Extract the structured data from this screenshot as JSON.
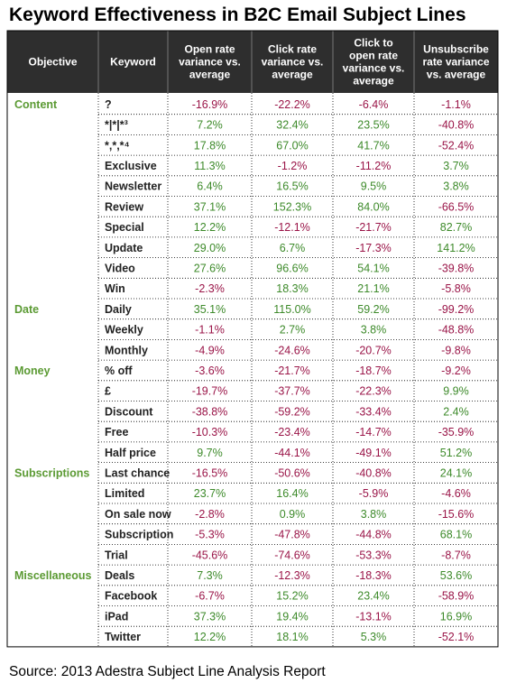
{
  "title": "Keyword Effectiveness in B2C Email Subject Lines",
  "source": "Source: 2013 Adestra Subject Line Analysis Report",
  "colors": {
    "header_bg": "#2e2e2e",
    "category_text": "#5b9a33",
    "positive_text": "#3d8a2a",
    "negative_text": "#9a1548",
    "grid": "#000000"
  },
  "chart_data": {
    "type": "table",
    "columns": [
      "Objective",
      "Keyword",
      "Open rate variance vs. average",
      "Click rate variance vs. average",
      "Click to open rate variance vs. average",
      "Unsubscribe rate variance vs. average"
    ],
    "column_header_lines": [
      [
        "Objective"
      ],
      [
        "Keyword"
      ],
      [
        "Open rate",
        "variance vs.",
        "average"
      ],
      [
        "Click rate",
        "variance vs.",
        "average"
      ],
      [
        "Click to",
        "open rate",
        "variance vs.",
        "average"
      ],
      [
        "Unsubscribe",
        "rate variance",
        "vs. average"
      ]
    ],
    "rows": [
      {
        "category": "Content",
        "keyword": "?",
        "values": [
          "-16.9%",
          "-22.2%",
          "-6.4%",
          "-1.1%"
        ]
      },
      {
        "category": "",
        "keyword": "*|*|*³",
        "values": [
          "7.2%",
          "32.4%",
          "23.5%",
          "-40.8%"
        ]
      },
      {
        "category": "",
        "keyword": "*,*,*⁴",
        "values": [
          "17.8%",
          "67.0%",
          "41.7%",
          "-52.4%"
        ]
      },
      {
        "category": "",
        "keyword": "Exclusive",
        "values": [
          "11.3%",
          "-1.2%",
          "-11.2%",
          "3.7%"
        ]
      },
      {
        "category": "",
        "keyword": "Newsletter",
        "values": [
          "6.4%",
          "16.5%",
          "9.5%",
          "3.8%"
        ]
      },
      {
        "category": "",
        "keyword": "Review",
        "values": [
          "37.1%",
          "152.3%",
          "84.0%",
          "-66.5%"
        ]
      },
      {
        "category": "",
        "keyword": "Special",
        "values": [
          "12.2%",
          "-12.1%",
          "-21.7%",
          "82.7%"
        ]
      },
      {
        "category": "",
        "keyword": "Update",
        "values": [
          "29.0%",
          "6.7%",
          "-17.3%",
          "141.2%"
        ]
      },
      {
        "category": "",
        "keyword": "Video",
        "values": [
          "27.6%",
          "96.6%",
          "54.1%",
          "-39.8%"
        ]
      },
      {
        "category": "",
        "keyword": "Win",
        "values": [
          "-2.3%",
          "18.3%",
          "21.1%",
          "-5.8%"
        ]
      },
      {
        "category": "Date",
        "keyword": "Daily",
        "values": [
          "35.1%",
          "115.0%",
          "59.2%",
          "-99.2%"
        ]
      },
      {
        "category": "",
        "keyword": "Weekly",
        "values": [
          "-1.1%",
          "2.7%",
          "3.8%",
          "-48.8%"
        ]
      },
      {
        "category": "",
        "keyword": "Monthly",
        "values": [
          "-4.9%",
          "-24.6%",
          "-20.7%",
          "-9.8%"
        ]
      },
      {
        "category": "Money",
        "keyword": "% off",
        "values": [
          "-3.6%",
          "-21.7%",
          "-18.7%",
          "-9.2%"
        ]
      },
      {
        "category": "",
        "keyword": "£",
        "values": [
          "-19.7%",
          "-37.7%",
          "-22.3%",
          "9.9%"
        ]
      },
      {
        "category": "",
        "keyword": "Discount",
        "values": [
          "-38.8%",
          "-59.2%",
          "-33.4%",
          "2.4%"
        ]
      },
      {
        "category": "",
        "keyword": "Free",
        "values": [
          "-10.3%",
          "-23.4%",
          "-14.7%",
          "-35.9%"
        ]
      },
      {
        "category": "",
        "keyword": "Half price",
        "values": [
          "9.7%",
          "-44.1%",
          "-49.1%",
          "51.2%"
        ]
      },
      {
        "category": "Subscriptions",
        "keyword": "Last chance",
        "values": [
          "-16.5%",
          "-50.6%",
          "-40.8%",
          "24.1%"
        ]
      },
      {
        "category": "",
        "keyword": "Limited",
        "values": [
          "23.7%",
          "16.4%",
          "-5.9%",
          "-4.6%"
        ]
      },
      {
        "category": "",
        "keyword": "On sale now",
        "values": [
          "-2.8%",
          "0.9%",
          "3.8%",
          "-15.6%"
        ]
      },
      {
        "category": "",
        "keyword": "Subscription",
        "values": [
          "-5.3%",
          "-47.8%",
          "-44.8%",
          "68.1%"
        ]
      },
      {
        "category": "",
        "keyword": "Trial",
        "values": [
          "-45.6%",
          "-74.6%",
          "-53.3%",
          "-8.7%"
        ]
      },
      {
        "category": "Miscellaneous",
        "keyword": "Deals",
        "values": [
          "7.3%",
          "-12.3%",
          "-18.3%",
          "53.6%"
        ]
      },
      {
        "category": "",
        "keyword": "Facebook",
        "values": [
          "-6.7%",
          "15.2%",
          "23.4%",
          "-58.9%"
        ]
      },
      {
        "category": "",
        "keyword": "iPad",
        "values": [
          "37.3%",
          "19.4%",
          "-13.1%",
          "16.9%"
        ]
      },
      {
        "category": "",
        "keyword": "Twitter",
        "values": [
          "12.2%",
          "18.1%",
          "5.3%",
          "-52.1%"
        ]
      }
    ]
  }
}
